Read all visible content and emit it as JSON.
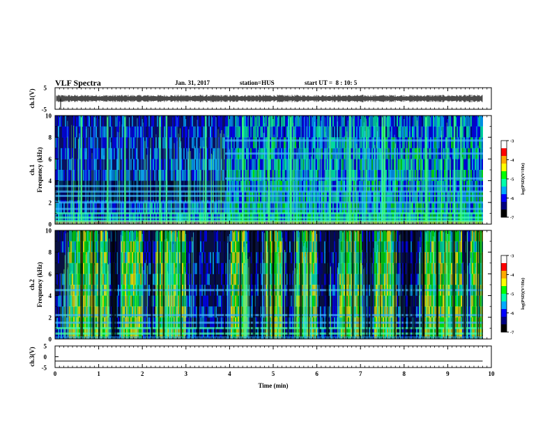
{
  "header": {
    "title": "VLF Spectra",
    "date": "Jan. 31, 2017",
    "station": "station=HUS",
    "start": "start UT =  8 : 10: 5"
  },
  "colorbar": {
    "label": "log(PSD)(V²/Hz)",
    "ticks": [
      "-3",
      "-4",
      "-5",
      "-6",
      "-7"
    ],
    "colors": [
      "#ffffff",
      "#ff0000",
      "#ffaa00",
      "#ffff00",
      "#00ff00",
      "#00ffaa",
      "#00aaff",
      "#0000ff",
      "#000080",
      "#000000"
    ]
  },
  "chart_data": [
    {
      "type": "line",
      "ylabel": "ch.1(V)",
      "ylim": [
        -5,
        5
      ],
      "yticks": [
        "5",
        "-5"
      ],
      "description_series": "waveform",
      "x": [
        0,
        1,
        2,
        3,
        4,
        5,
        6,
        7,
        8,
        9,
        9.8
      ],
      "y": [
        0,
        0,
        0,
        0,
        0,
        0,
        0,
        0,
        0,
        0,
        0
      ]
    },
    {
      "type": "heatmap",
      "ylabel": "ch.1\nFrequency (kHz)",
      "ylim": [
        0,
        10
      ],
      "yticks": [
        "0",
        "2",
        "4",
        "6",
        "8",
        "10"
      ],
      "xlim": [
        0,
        10
      ],
      "zlim": [
        -7,
        -3
      ],
      "bands_khz": [
        0.3,
        0.6,
        1.0,
        1.4,
        2.0,
        2.6,
        3.0,
        3.5,
        4.2,
        6.5,
        7.7
      ],
      "spike_times_min": [
        0.6,
        1.2,
        1.6,
        2.4,
        2.55,
        3.45,
        4.3,
        4.9,
        5.4,
        6.3,
        6.75,
        7.5,
        7.55,
        8.5,
        9.15,
        9.3
      ]
    },
    {
      "type": "heatmap",
      "ylabel": "ch.2\nFrequency (kHz)",
      "ylim": [
        0,
        10
      ],
      "yticks": [
        "0",
        "2",
        "4",
        "6",
        "8",
        "10"
      ],
      "xlim": [
        0,
        10
      ],
      "zlim": [
        -7,
        -3
      ],
      "bands_khz": [
        0.5,
        1.0,
        1.5,
        2.2,
        4.5
      ],
      "active_intervals_min": [
        [
          0.3,
          1.2
        ],
        [
          1.5,
          2.0
        ],
        [
          2.3,
          3.0
        ],
        [
          4.0,
          4.4
        ],
        [
          4.8,
          5.2
        ],
        [
          5.5,
          6.0
        ],
        [
          6.5,
          7.0
        ],
        [
          7.3,
          7.8
        ],
        [
          8.4,
          9.3
        ],
        [
          9.5,
          9.8
        ]
      ]
    },
    {
      "type": "line",
      "ylabel": "ch.3(V)",
      "ylim": [
        -5,
        5
      ],
      "yticks": [
        "5",
        "0",
        "-5"
      ],
      "x": [
        0,
        9.8
      ],
      "y": [
        -2,
        -2
      ]
    }
  ],
  "xaxis": {
    "label": "Time (min)",
    "xlim": [
      0,
      10
    ],
    "ticks": [
      "0",
      "1",
      "2",
      "3",
      "4",
      "5",
      "6",
      "7",
      "8",
      "9",
      "10"
    ]
  }
}
